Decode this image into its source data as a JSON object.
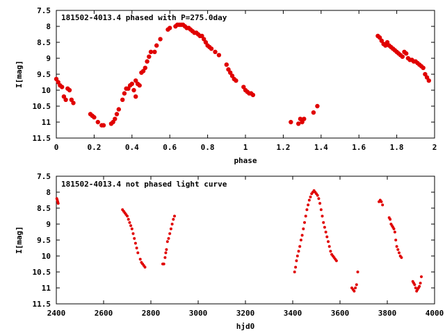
{
  "chart_data": [
    {
      "type": "scatter",
      "title": "181502-4013.4 phased with P=275.0day",
      "xlabel": "phase",
      "ylabel": "I[mag]",
      "xlim": [
        0,
        2
      ],
      "ylim": [
        11.5,
        7.5
      ],
      "y_inverted": true,
      "x_ticks": [
        0,
        0.2,
        0.4,
        0.6,
        0.8,
        1,
        1.2,
        1.4,
        1.6,
        1.8,
        2
      ],
      "x_tick_labels": [
        "0",
        "0.2",
        "0.4",
        "0.6",
        "0.8",
        "1",
        "1.2",
        "1.4",
        "1.6",
        "1.8",
        "2"
      ],
      "y_ticks": [
        7.5,
        8,
        8.5,
        9,
        9.5,
        10,
        10.5,
        11,
        11.5
      ],
      "y_tick_labels": [
        "7.5",
        "8",
        "8.5",
        "9",
        "9.5",
        "10",
        "10.5",
        "11",
        "11.5"
      ],
      "marker_color": "#e00000",
      "marker_shape": "filled-circle",
      "marker_size": "large",
      "grid": false,
      "series": [
        {
          "x": [
            0.0,
            0.01,
            0.02,
            0.03,
            0.04,
            0.05,
            0.06,
            0.07,
            0.08,
            0.09,
            0.18,
            0.19,
            0.2,
            0.22,
            0.24,
            0.25,
            0.29,
            0.3,
            0.31,
            0.32,
            0.33,
            0.35,
            0.36,
            0.37,
            0.38,
            0.39,
            0.4,
            0.41,
            0.42,
            0.42,
            0.43,
            0.44,
            0.45,
            0.46,
            0.47,
            0.48,
            0.49,
            0.5,
            0.52,
            0.53,
            0.55,
            0.59,
            0.6,
            0.63,
            0.64,
            0.65,
            0.66,
            0.67,
            0.68,
            0.69,
            0.7,
            0.71,
            0.72,
            0.73,
            0.74,
            0.75,
            0.76,
            0.77,
            0.78,
            0.79,
            0.8,
            0.81,
            0.82,
            0.84,
            0.86,
            0.9,
            0.91,
            0.92,
            0.93,
            0.94,
            0.95,
            0.99,
            1.0,
            1.01,
            1.02,
            1.03,
            1.04,
            1.24,
            1.28,
            1.29,
            1.3,
            1.31,
            1.36,
            1.38,
            1.7,
            1.71,
            1.72,
            1.73,
            1.74,
            1.75,
            1.76,
            1.77,
            1.78,
            1.79,
            1.8,
            1.81,
            1.82,
            1.83,
            1.84,
            1.85,
            1.86,
            1.87,
            1.88,
            1.89,
            1.9,
            1.91,
            1.92,
            1.93,
            1.94,
            1.95,
            1.96,
            1.97
          ],
          "y": [
            9.65,
            9.75,
            9.85,
            9.9,
            10.2,
            10.3,
            9.95,
            10.0,
            10.3,
            10.4,
            10.75,
            10.8,
            10.85,
            11.0,
            11.1,
            11.1,
            11.05,
            11.0,
            10.9,
            10.75,
            10.6,
            10.3,
            10.1,
            9.95,
            9.95,
            9.85,
            9.8,
            10.0,
            10.2,
            9.7,
            9.8,
            9.85,
            9.45,
            9.4,
            9.3,
            9.1,
            8.95,
            8.8,
            8.8,
            8.6,
            8.4,
            8.1,
            8.05,
            8.0,
            7.95,
            7.95,
            7.95,
            7.95,
            8.0,
            8.05,
            8.05,
            8.1,
            8.15,
            8.2,
            8.2,
            8.25,
            8.3,
            8.3,
            8.4,
            8.5,
            8.6,
            8.65,
            8.7,
            8.8,
            8.9,
            9.2,
            9.35,
            9.45,
            9.55,
            9.65,
            9.7,
            9.9,
            10.0,
            10.05,
            10.1,
            10.1,
            10.15,
            11.0,
            11.05,
            10.9,
            11.0,
            10.9,
            10.7,
            10.5,
            8.3,
            8.35,
            8.45,
            8.55,
            8.6,
            8.5,
            8.6,
            8.65,
            8.7,
            8.75,
            8.8,
            8.85,
            8.9,
            8.95,
            8.8,
            8.85,
            9.0,
            9.05,
            9.05,
            9.1,
            9.1,
            9.15,
            9.2,
            9.25,
            9.3,
            9.5,
            9.6,
            9.7
          ]
        }
      ]
    },
    {
      "type": "scatter",
      "title": "181502-4013.4 not phased light curve",
      "xlabel": "hjd0",
      "ylabel": "I[mag]",
      "xlim": [
        2400,
        4000
      ],
      "ylim": [
        11.5,
        7.5
      ],
      "y_inverted": true,
      "x_ticks": [
        2400,
        2600,
        2800,
        3000,
        3200,
        3400,
        3600,
        3800,
        4000
      ],
      "x_tick_labels": [
        "2400",
        "2600",
        "2800",
        "3000",
        "3200",
        "3400",
        "3600",
        "3800",
        "4000"
      ],
      "y_ticks": [
        7.5,
        8,
        8.5,
        9,
        9.5,
        10,
        10.5,
        11,
        11.5
      ],
      "y_tick_labels": [
        "7.5",
        "8",
        "8.5",
        "9",
        "9.5",
        "10",
        "10.5",
        "11",
        "11.5"
      ],
      "marker_color": "#e00000",
      "marker_shape": "filled-circle",
      "marker_size": "small",
      "grid": false,
      "series": [
        {
          "x": [
            2402,
            2404,
            2406,
            2408,
            2680,
            2685,
            2690,
            2695,
            2700,
            2705,
            2710,
            2715,
            2720,
            2725,
            2730,
            2735,
            2740,
            2745,
            2755,
            2760,
            2765,
            2770,
            2775,
            2850,
            2855,
            2860,
            2863,
            2866,
            2870,
            2875,
            2880,
            2885,
            2890,
            2895,
            2900,
            3408,
            3412,
            3416,
            3420,
            3425,
            3430,
            3435,
            3440,
            3445,
            3450,
            3455,
            3460,
            3465,
            3470,
            3475,
            3480,
            3485,
            3490,
            3495,
            3500,
            3505,
            3510,
            3515,
            3520,
            3525,
            3530,
            3535,
            3540,
            3545,
            3550,
            3555,
            3560,
            3565,
            3570,
            3575,
            3580,
            3585,
            3650,
            3655,
            3660,
            3665,
            3670,
            3675,
            3765,
            3770,
            3775,
            3780,
            3808,
            3812,
            3816,
            3820,
            3824,
            3828,
            3832,
            3836,
            3840,
            3845,
            3850,
            3855,
            3860,
            3908,
            3912,
            3916,
            3920,
            3924,
            3928,
            3932,
            3936,
            3940,
            3944
          ],
          "y": [
            8.2,
            8.25,
            8.3,
            8.35,
            8.55,
            8.6,
            8.65,
            8.7,
            8.75,
            8.85,
            8.95,
            9.05,
            9.15,
            9.3,
            9.45,
            9.6,
            9.75,
            9.9,
            10.1,
            10.2,
            10.25,
            10.3,
            10.35,
            10.25,
            10.25,
            10.05,
            9.9,
            9.8,
            9.55,
            9.45,
            9.3,
            9.15,
            9.0,
            8.85,
            8.75,
            10.5,
            10.35,
            10.15,
            10.0,
            9.85,
            9.7,
            9.5,
            9.35,
            9.15,
            8.95,
            8.75,
            8.55,
            8.4,
            8.25,
            8.15,
            8.05,
            8.0,
            7.95,
            8.0,
            8.05,
            8.1,
            8.2,
            8.35,
            8.55,
            8.75,
            8.95,
            9.1,
            9.25,
            9.4,
            9.55,
            9.7,
            9.85,
            9.95,
            10.0,
            10.05,
            10.1,
            10.15,
            11.0,
            11.05,
            11.1,
            11.0,
            10.9,
            10.5,
            8.3,
            8.25,
            8.3,
            8.4,
            8.8,
            8.85,
            9.0,
            9.05,
            9.1,
            9.15,
            9.25,
            9.5,
            9.7,
            9.8,
            9.9,
            10.0,
            10.05,
            10.8,
            10.85,
            10.9,
            11.0,
            11.1,
            11.05,
            11.0,
            10.95,
            10.85,
            10.65
          ]
        }
      ]
    }
  ]
}
